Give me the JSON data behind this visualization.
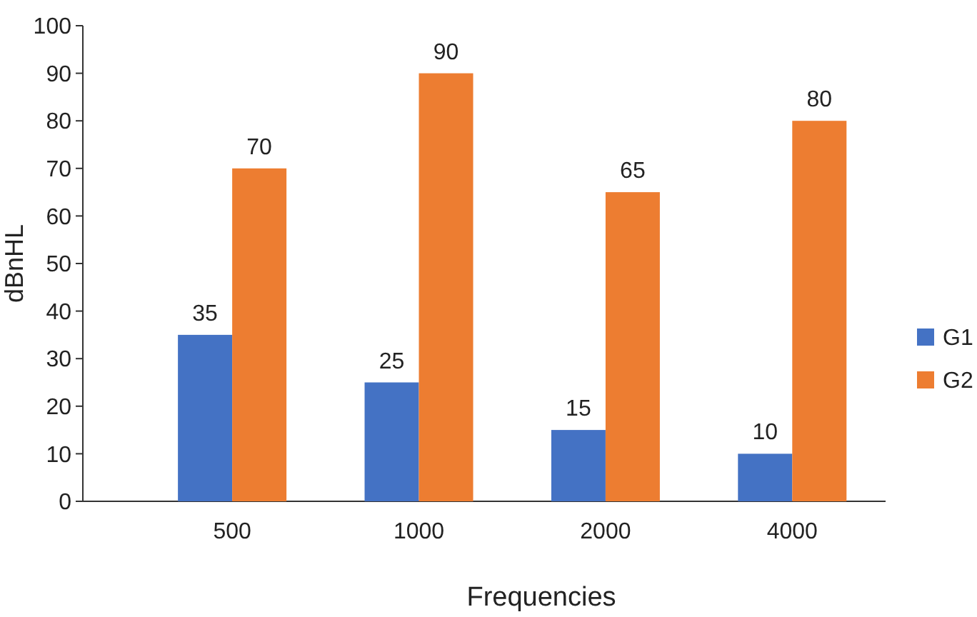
{
  "chart_data": {
    "type": "bar",
    "xlabel": "Frequencies",
    "ylabel": "dBnHL",
    "categories": [
      "500",
      "1000",
      "2000",
      "4000"
    ],
    "series": [
      {
        "name": "G1",
        "color": "#4472c4",
        "values": [
          35,
          25,
          15,
          10
        ]
      },
      {
        "name": "G2",
        "color": "#ed7d31",
        "values": [
          70,
          90,
          65,
          80
        ]
      }
    ],
    "ylim": [
      0,
      100
    ],
    "yticks": [
      0,
      10,
      20,
      30,
      40,
      50,
      60,
      70,
      80,
      90,
      100
    ],
    "grid": false,
    "legend": "right",
    "data_labels": true
  }
}
